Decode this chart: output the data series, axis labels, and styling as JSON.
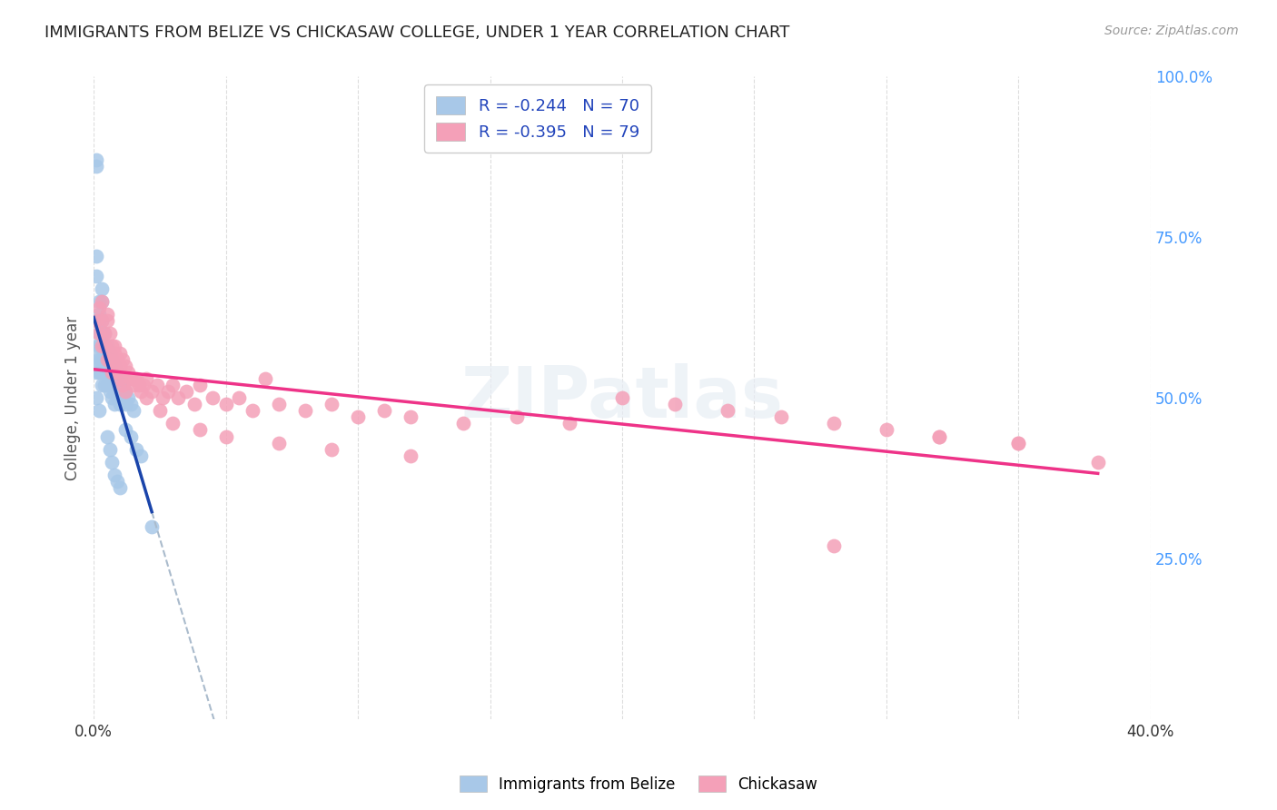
{
  "title": "IMMIGRANTS FROM BELIZE VS CHICKASAW COLLEGE, UNDER 1 YEAR CORRELATION CHART",
  "source": "Source: ZipAtlas.com",
  "ylabel": "College, Under 1 year",
  "xlim": [
    0.0,
    0.4
  ],
  "ylim": [
    0.0,
    1.0
  ],
  "xtick_positions": [
    0.0,
    0.05,
    0.1,
    0.15,
    0.2,
    0.25,
    0.3,
    0.35,
    0.4
  ],
  "xticklabels": [
    "0.0%",
    "",
    "",
    "",
    "",
    "",
    "",
    "",
    "40.0%"
  ],
  "yticks_right": [
    0.25,
    0.5,
    0.75,
    1.0
  ],
  "ytick_right_labels": [
    "25.0%",
    "50.0%",
    "75.0%",
    "100.0%"
  ],
  "blue_scatter_color": "#a8c8e8",
  "pink_scatter_color": "#f4a0b8",
  "blue_line_color": "#1a44aa",
  "pink_line_color": "#ee3388",
  "blue_dash_color": "#aabbcc",
  "right_tick_color": "#4499ff",
  "grid_color": "#dddddd",
  "watermark_text": "ZIPatlas",
  "watermark_color": "#e8eef5",
  "legend_text_color": "#2244bb",
  "title_color": "#222222",
  "source_color": "#999999",
  "ylabel_color": "#555555",
  "blue_r": -0.244,
  "blue_n": 70,
  "pink_r": -0.395,
  "pink_n": 79,
  "blue_x": [
    0.001,
    0.001,
    0.001,
    0.001,
    0.001,
    0.002,
    0.002,
    0.002,
    0.002,
    0.002,
    0.003,
    0.003,
    0.003,
    0.003,
    0.003,
    0.003,
    0.004,
    0.004,
    0.004,
    0.004,
    0.004,
    0.005,
    0.005,
    0.005,
    0.005,
    0.006,
    0.006,
    0.006,
    0.006,
    0.007,
    0.007,
    0.007,
    0.007,
    0.008,
    0.008,
    0.008,
    0.008,
    0.009,
    0.009,
    0.009,
    0.01,
    0.01,
    0.01,
    0.011,
    0.011,
    0.012,
    0.012,
    0.013,
    0.014,
    0.015,
    0.001,
    0.001,
    0.002,
    0.002,
    0.003,
    0.003,
    0.004,
    0.005,
    0.006,
    0.007,
    0.008,
    0.009,
    0.01,
    0.012,
    0.014,
    0.016,
    0.018,
    0.022,
    0.001,
    0.002
  ],
  "blue_y": [
    0.87,
    0.86,
    0.58,
    0.56,
    0.54,
    0.62,
    0.6,
    0.58,
    0.56,
    0.54,
    0.62,
    0.6,
    0.58,
    0.56,
    0.54,
    0.52,
    0.6,
    0.58,
    0.56,
    0.54,
    0.52,
    0.58,
    0.56,
    0.54,
    0.52,
    0.57,
    0.55,
    0.53,
    0.51,
    0.56,
    0.54,
    0.52,
    0.5,
    0.55,
    0.53,
    0.51,
    0.49,
    0.54,
    0.52,
    0.5,
    0.53,
    0.51,
    0.49,
    0.52,
    0.5,
    0.51,
    0.49,
    0.5,
    0.49,
    0.48,
    0.72,
    0.69,
    0.65,
    0.63,
    0.67,
    0.65,
    0.55,
    0.44,
    0.42,
    0.4,
    0.38,
    0.37,
    0.36,
    0.45,
    0.44,
    0.42,
    0.41,
    0.3,
    0.5,
    0.48
  ],
  "pink_x": [
    0.001,
    0.002,
    0.002,
    0.003,
    0.003,
    0.004,
    0.004,
    0.005,
    0.005,
    0.006,
    0.006,
    0.007,
    0.007,
    0.008,
    0.008,
    0.009,
    0.009,
    0.01,
    0.01,
    0.011,
    0.011,
    0.012,
    0.012,
    0.013,
    0.014,
    0.015,
    0.016,
    0.017,
    0.018,
    0.019,
    0.02,
    0.022,
    0.024,
    0.026,
    0.028,
    0.03,
    0.032,
    0.035,
    0.038,
    0.04,
    0.045,
    0.05,
    0.055,
    0.06,
    0.065,
    0.07,
    0.08,
    0.09,
    0.1,
    0.11,
    0.12,
    0.14,
    0.16,
    0.18,
    0.2,
    0.22,
    0.24,
    0.26,
    0.28,
    0.3,
    0.32,
    0.35,
    0.38,
    0.003,
    0.005,
    0.008,
    0.01,
    0.015,
    0.02,
    0.025,
    0.03,
    0.04,
    0.05,
    0.07,
    0.09,
    0.12,
    0.28,
    0.32,
    0.35
  ],
  "pink_y": [
    0.62,
    0.64,
    0.6,
    0.62,
    0.58,
    0.6,
    0.58,
    0.62,
    0.56,
    0.6,
    0.56,
    0.58,
    0.54,
    0.57,
    0.55,
    0.56,
    0.54,
    0.57,
    0.53,
    0.56,
    0.52,
    0.55,
    0.51,
    0.54,
    0.53,
    0.52,
    0.53,
    0.52,
    0.51,
    0.52,
    0.53,
    0.51,
    0.52,
    0.5,
    0.51,
    0.52,
    0.5,
    0.51,
    0.49,
    0.52,
    0.5,
    0.49,
    0.5,
    0.48,
    0.53,
    0.49,
    0.48,
    0.49,
    0.47,
    0.48,
    0.47,
    0.46,
    0.47,
    0.46,
    0.5,
    0.49,
    0.48,
    0.47,
    0.46,
    0.45,
    0.44,
    0.43,
    0.4,
    0.65,
    0.63,
    0.58,
    0.55,
    0.53,
    0.5,
    0.48,
    0.46,
    0.45,
    0.44,
    0.43,
    0.42,
    0.41,
    0.27,
    0.44,
    0.43
  ]
}
